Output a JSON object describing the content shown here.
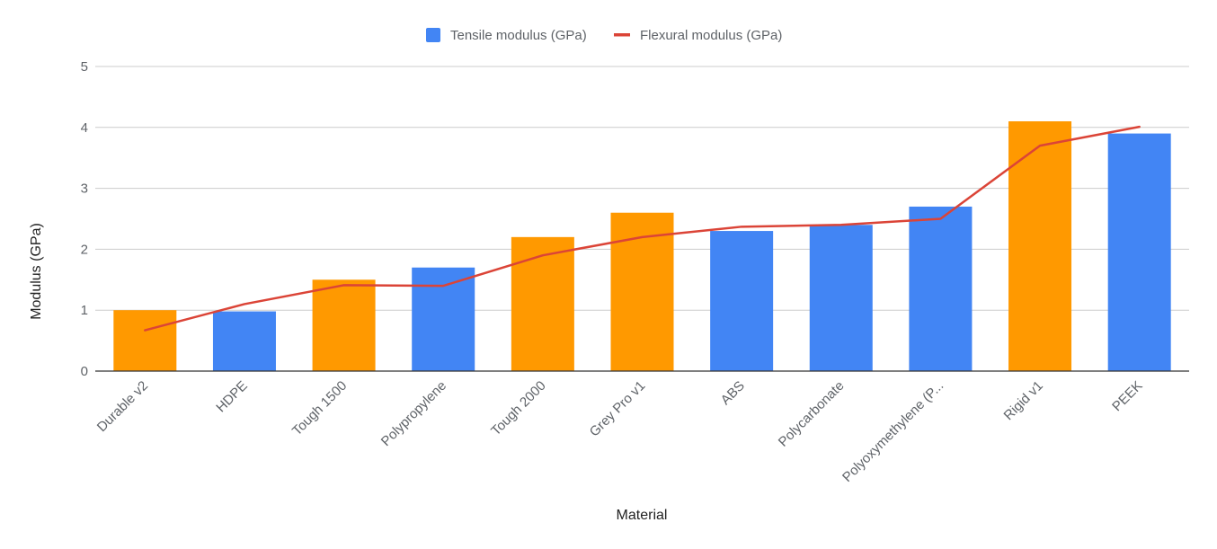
{
  "chart_data": {
    "type": "bar",
    "title": "",
    "xlabel": "Material",
    "ylabel": "Modulus (GPa)",
    "ylim": [
      0,
      5
    ],
    "yticks": [
      0,
      1,
      2,
      3,
      4,
      5
    ],
    "grid": true,
    "legend_position": "top",
    "categories": [
      "Durable v2",
      "HDPE",
      "Tough 1500",
      "Polypropylene",
      "Tough 2000",
      "Grey Pro v1",
      "ABS",
      "Polycarbonate",
      "Polyoxymethylene (P...",
      "Rigid v1",
      "PEEK"
    ],
    "bar_colors": [
      "#ff9900",
      "#4285f4",
      "#ff9900",
      "#4285f4",
      "#ff9900",
      "#ff9900",
      "#4285f4",
      "#4285f4",
      "#4285f4",
      "#ff9900",
      "#4285f4"
    ],
    "series": [
      {
        "name": "Tensile modulus (GPa)",
        "type": "bar",
        "color": "#4285f4",
        "values": [
          1.0,
          0.98,
          1.5,
          1.7,
          2.2,
          2.6,
          2.3,
          2.4,
          2.7,
          4.1,
          3.9
        ]
      },
      {
        "name": "Flexural modulus (GPa)",
        "type": "line",
        "color": "#db4437",
        "values": [
          0.67,
          1.1,
          1.41,
          1.4,
          1.9,
          2.2,
          2.37,
          2.4,
          2.5,
          3.7,
          4.01
        ]
      }
    ]
  }
}
